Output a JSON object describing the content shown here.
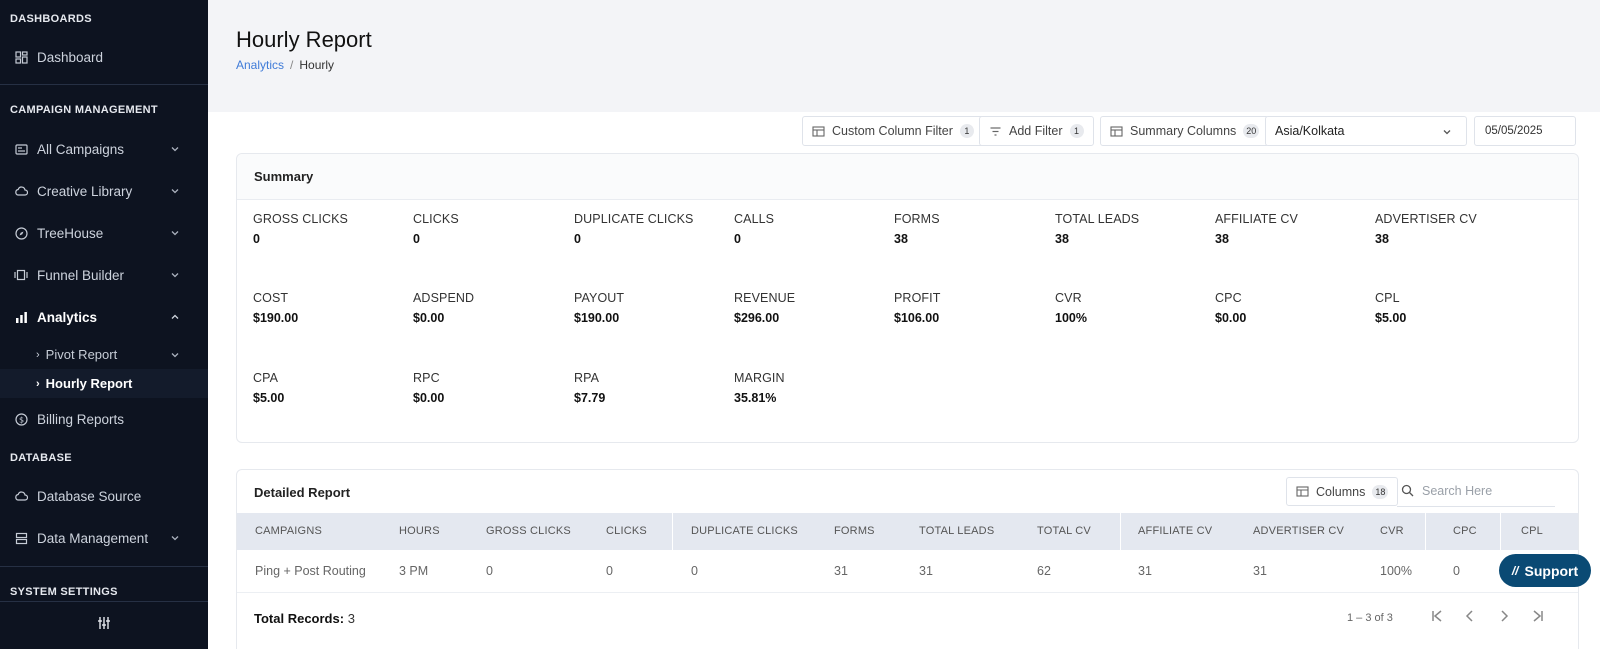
{
  "sidebar": {
    "sections": {
      "dashboards": "DASHBOARDS",
      "campaign_management": "CAMPAIGN MANAGEMENT",
      "database": "DATABASE",
      "system_settings": "SYSTEM SETTINGS"
    },
    "items": {
      "dashboard": "Dashboard",
      "all_campaigns": "All Campaigns",
      "creative_library": "Creative Library",
      "treehouse": "TreeHouse",
      "funnel_builder": "Funnel Builder",
      "analytics": "Analytics",
      "pivot_report": "Pivot Report",
      "hourly_report": "Hourly Report",
      "billing_reports": "Billing Reports",
      "database_source": "Database Source",
      "data_management": "Data Management"
    }
  },
  "header": {
    "title": "Hourly Report",
    "breadcrumb": {
      "parent": "Analytics",
      "separator": "/",
      "current": "Hourly"
    }
  },
  "toolbar": {
    "custom_column_filter": "Custom Column Filter",
    "custom_column_filter_count": "1",
    "add_filter": "Add Filter",
    "add_filter_count": "1",
    "summary_columns": "Summary Columns",
    "summary_columns_count": "20",
    "timezone": "Asia/Kolkata",
    "date": "05/05/2025"
  },
  "summary": {
    "title": "Summary",
    "metrics": [
      {
        "label": "GROSS CLICKS",
        "value": "0"
      },
      {
        "label": "CLICKS",
        "value": "0"
      },
      {
        "label": "DUPLICATE CLICKS",
        "value": "0"
      },
      {
        "label": "CALLS",
        "value": "0"
      },
      {
        "label": "FORMS",
        "value": "38"
      },
      {
        "label": "TOTAL LEADS",
        "value": "38"
      },
      {
        "label": "AFFILIATE CV",
        "value": "38"
      },
      {
        "label": "ADVERTISER CV",
        "value": "38"
      },
      {
        "label": "COST",
        "value": "$190.00"
      },
      {
        "label": "ADSPEND",
        "value": "$0.00"
      },
      {
        "label": "PAYOUT",
        "value": "$190.00"
      },
      {
        "label": "REVENUE",
        "value": "$296.00"
      },
      {
        "label": "PROFIT",
        "value": "$106.00"
      },
      {
        "label": "CVR",
        "value": "100%"
      },
      {
        "label": "CPC",
        "value": "$0.00"
      },
      {
        "label": "CPL",
        "value": "$5.00"
      },
      {
        "label": "CPA",
        "value": "$5.00"
      },
      {
        "label": "RPC",
        "value": "$0.00"
      },
      {
        "label": "RPA",
        "value": "$7.79"
      },
      {
        "label": "MARGIN",
        "value": "35.81%"
      }
    ]
  },
  "detail": {
    "title": "Detailed Report",
    "columns_label": "Columns",
    "columns_count": "18",
    "search_placeholder": "Search Here",
    "headers": [
      "CAMPAIGNS",
      "HOURS",
      "GROSS CLICKS",
      "CLICKS",
      "DUPLICATE CLICKS",
      "FORMS",
      "TOTAL LEADS",
      "TOTAL CV",
      "AFFILIATE CV",
      "ADVERTISER CV",
      "CVR",
      "CPC",
      "CPL"
    ],
    "rows": [
      [
        "Ping + Post Routing",
        "3 PM",
        "0",
        "0",
        "0",
        "31",
        "31",
        "62",
        "31",
        "31",
        "100%",
        "0",
        ""
      ]
    ],
    "total_records_label": "Total Records:",
    "total_records_value": "3",
    "range": "1 – 3 of 3"
  },
  "support_label": "Support"
}
